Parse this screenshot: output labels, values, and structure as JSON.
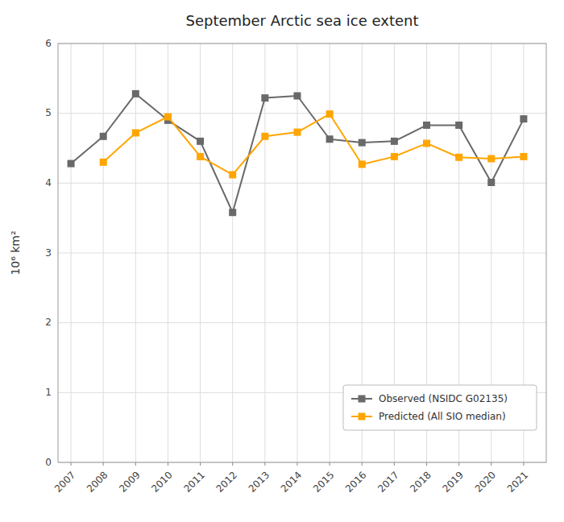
{
  "chart_data": {
    "type": "line",
    "title": "September Arctic sea ice extent",
    "ylabel": "10⁶ km²",
    "x": [
      2007,
      2008,
      2009,
      2010,
      2011,
      2012,
      2013,
      2014,
      2015,
      2016,
      2017,
      2018,
      2019,
      2020,
      2021
    ],
    "series": [
      {
        "name": "Observed (NSIDC G02135)",
        "color": "#696969",
        "marker": "square",
        "line_style": "solid",
        "values": [
          4.28,
          4.67,
          5.28,
          4.9,
          4.6,
          3.58,
          5.22,
          5.25,
          4.63,
          4.58,
          4.6,
          4.83,
          4.83,
          4.01,
          4.92
        ]
      },
      {
        "name": "Predicted (All SIO median)",
        "color": "#FFA500",
        "marker": "square",
        "line_style": "solid",
        "values": [
          null,
          4.3,
          4.72,
          4.95,
          4.38,
          4.12,
          4.67,
          4.73,
          4.99,
          4.27,
          4.38,
          4.57,
          4.37,
          4.35,
          4.38
        ]
      }
    ],
    "xlim": [
      2006.6,
      2021.7
    ],
    "xticks": [
      2007,
      2008,
      2009,
      2010,
      2011,
      2012,
      2013,
      2014,
      2015,
      2016,
      2017,
      2018,
      2019,
      2020,
      2021
    ],
    "ylim": [
      0,
      6
    ],
    "yticks": [
      0,
      1,
      2,
      3,
      4,
      5,
      6
    ],
    "grid": true,
    "legend": "lower right"
  }
}
